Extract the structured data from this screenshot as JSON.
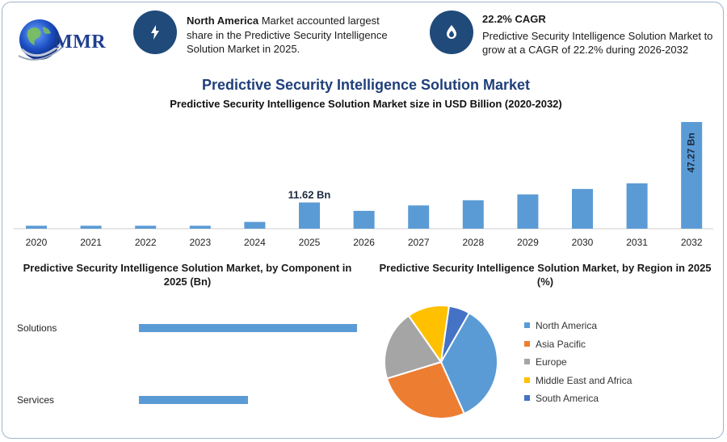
{
  "brand": {
    "name": "MMR"
  },
  "highlights": [
    {
      "icon": "lightning-icon",
      "bold": "North America",
      "text": " Market accounted largest share in the Predictive Security Intelligence Solution Market in 2025."
    },
    {
      "icon": "growth-icon",
      "bold": "22.2% CAGR",
      "text": "Predictive Security Intelligence Solution Market to grow at a CAGR of 22.2% during 2026-2032"
    }
  ],
  "title": "Predictive Security Intelligence Solution Market",
  "subtitle": "Predictive Security Intelligence Solution Market size in USD Billion (2020-2032)",
  "chart_data": [
    {
      "type": "bar",
      "title": "Predictive Security Intelligence Solution Market size in USD Billion (2020-2032)",
      "categories": [
        "2020",
        "2021",
        "2022",
        "2023",
        "2024",
        "2025",
        "2026",
        "2027",
        "2028",
        "2029",
        "2030",
        "2031",
        "2032"
      ],
      "values": [
        1.3,
        1.3,
        1.3,
        1.3,
        3.0,
        11.62,
        7.9,
        10.3,
        12.6,
        15.2,
        17.6,
        20.1,
        47.27
      ],
      "data_labels": {
        "5": "11.62 Bn",
        "12": "47.27 Bn"
      },
      "color": "#5b9bd5"
    },
    {
      "type": "bar",
      "orientation": "horizontal",
      "title": "Predictive Security Intelligence Solution Market, by Component in 2025 (Bn)",
      "categories": [
        "Solutions",
        "Services"
      ],
      "values": [
        1.0,
        0.5
      ],
      "color": "#5b9bd5"
    },
    {
      "type": "pie",
      "title": "Predictive Security Intelligence Solution Market, by Region in 2025 (%)",
      "categories": [
        "North America",
        "Asia Pacific",
        "Europe",
        "Middle East and Africa",
        "South America"
      ],
      "values": [
        35,
        27,
        20,
        12,
        6
      ],
      "colors": [
        "#5b9bd5",
        "#ed7d31",
        "#a5a5a5",
        "#ffc000",
        "#4472c4"
      ]
    }
  ]
}
